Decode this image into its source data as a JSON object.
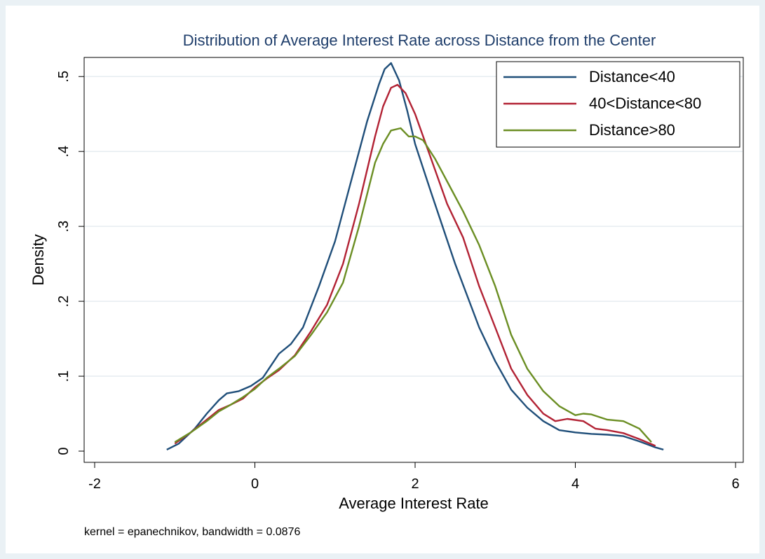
{
  "chart_data": {
    "type": "line",
    "title": "Distribution of Average Interest Rate across Distance from the Center",
    "xlabel": "Average Interest Rate",
    "ylabel": "Density",
    "note": "kernel = epanechnikov, bandwidth = 0.0876",
    "xlim": [
      -2,
      6
    ],
    "ylim": [
      0,
      0.52
    ],
    "x_ticks": [
      -2,
      0,
      2,
      4,
      6
    ],
    "x_tick_labels": [
      "-2",
      "0",
      "2",
      "4",
      "6"
    ],
    "y_ticks": [
      0,
      0.1,
      0.2,
      0.3,
      0.4,
      0.5
    ],
    "y_tick_labels": [
      "0",
      ".1",
      ".2",
      ".3",
      ".4",
      ".5"
    ],
    "grid": "horizontal",
    "legend_position": "top-right",
    "series": [
      {
        "name": "Distance<40",
        "color": "#1f4e79",
        "points": [
          [
            -1.1,
            0.002
          ],
          [
            -0.95,
            0.01
          ],
          [
            -0.75,
            0.03
          ],
          [
            -0.6,
            0.05
          ],
          [
            -0.45,
            0.068
          ],
          [
            -0.35,
            0.077
          ],
          [
            -0.2,
            0.08
          ],
          [
            -0.05,
            0.087
          ],
          [
            0.1,
            0.098
          ],
          [
            0.3,
            0.13
          ],
          [
            0.45,
            0.143
          ],
          [
            0.6,
            0.165
          ],
          [
            0.8,
            0.22
          ],
          [
            1.0,
            0.28
          ],
          [
            1.2,
            0.36
          ],
          [
            1.4,
            0.44
          ],
          [
            1.55,
            0.49
          ],
          [
            1.62,
            0.51
          ],
          [
            1.7,
            0.518
          ],
          [
            1.8,
            0.495
          ],
          [
            1.9,
            0.455
          ],
          [
            2.0,
            0.41
          ],
          [
            2.2,
            0.345
          ],
          [
            2.5,
            0.25
          ],
          [
            2.8,
            0.165
          ],
          [
            3.0,
            0.12
          ],
          [
            3.2,
            0.082
          ],
          [
            3.4,
            0.058
          ],
          [
            3.6,
            0.04
          ],
          [
            3.8,
            0.028
          ],
          [
            4.0,
            0.025
          ],
          [
            4.2,
            0.023
          ],
          [
            4.4,
            0.022
          ],
          [
            4.6,
            0.02
          ],
          [
            4.8,
            0.013
          ],
          [
            5.0,
            0.005
          ],
          [
            5.1,
            0.002
          ]
        ]
      },
      {
        "name": "40<Distance<80",
        "color": "#b22234",
        "points": [
          [
            -1.0,
            0.01
          ],
          [
            -0.8,
            0.025
          ],
          [
            -0.6,
            0.042
          ],
          [
            -0.45,
            0.055
          ],
          [
            -0.3,
            0.062
          ],
          [
            -0.15,
            0.07
          ],
          [
            0.0,
            0.085
          ],
          [
            0.15,
            0.097
          ],
          [
            0.3,
            0.108
          ],
          [
            0.5,
            0.128
          ],
          [
            0.7,
            0.16
          ],
          [
            0.9,
            0.195
          ],
          [
            1.1,
            0.25
          ],
          [
            1.3,
            0.33
          ],
          [
            1.5,
            0.42
          ],
          [
            1.6,
            0.46
          ],
          [
            1.7,
            0.485
          ],
          [
            1.78,
            0.489
          ],
          [
            1.88,
            0.478
          ],
          [
            2.0,
            0.45
          ],
          [
            2.2,
            0.39
          ],
          [
            2.4,
            0.33
          ],
          [
            2.6,
            0.285
          ],
          [
            2.8,
            0.22
          ],
          [
            3.0,
            0.165
          ],
          [
            3.2,
            0.11
          ],
          [
            3.4,
            0.075
          ],
          [
            3.6,
            0.05
          ],
          [
            3.75,
            0.04
          ],
          [
            3.9,
            0.043
          ],
          [
            4.1,
            0.04
          ],
          [
            4.25,
            0.03
          ],
          [
            4.4,
            0.028
          ],
          [
            4.6,
            0.024
          ],
          [
            4.8,
            0.016
          ],
          [
            5.0,
            0.007
          ]
        ]
      },
      {
        "name": "Distance>80",
        "color": "#6b8e23",
        "points": [
          [
            -1.0,
            0.012
          ],
          [
            -0.8,
            0.025
          ],
          [
            -0.6,
            0.04
          ],
          [
            -0.45,
            0.053
          ],
          [
            -0.3,
            0.062
          ],
          [
            -0.15,
            0.072
          ],
          [
            0.0,
            0.083
          ],
          [
            0.15,
            0.098
          ],
          [
            0.3,
            0.11
          ],
          [
            0.5,
            0.127
          ],
          [
            0.7,
            0.155
          ],
          [
            0.9,
            0.185
          ],
          [
            1.1,
            0.225
          ],
          [
            1.3,
            0.3
          ],
          [
            1.5,
            0.385
          ],
          [
            1.6,
            0.41
          ],
          [
            1.7,
            0.428
          ],
          [
            1.82,
            0.431
          ],
          [
            1.92,
            0.42
          ],
          [
            2.0,
            0.42
          ],
          [
            2.1,
            0.415
          ],
          [
            2.25,
            0.39
          ],
          [
            2.4,
            0.36
          ],
          [
            2.6,
            0.32
          ],
          [
            2.8,
            0.275
          ],
          [
            3.0,
            0.22
          ],
          [
            3.2,
            0.155
          ],
          [
            3.4,
            0.11
          ],
          [
            3.6,
            0.08
          ],
          [
            3.8,
            0.06
          ],
          [
            4.0,
            0.048
          ],
          [
            4.1,
            0.05
          ],
          [
            4.2,
            0.049
          ],
          [
            4.4,
            0.042
          ],
          [
            4.6,
            0.04
          ],
          [
            4.8,
            0.03
          ],
          [
            4.95,
            0.012
          ]
        ]
      }
    ]
  }
}
